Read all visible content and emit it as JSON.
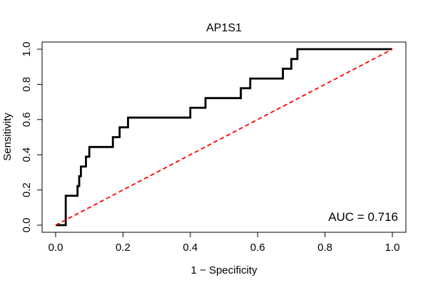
{
  "chart_data": {
    "type": "line",
    "title": "AP1S1",
    "xlabel": "1 − Specificity",
    "ylabel": "Sensitivity",
    "xlim": [
      0,
      1
    ],
    "ylim": [
      0,
      1
    ],
    "x_ticks": [
      "0.0",
      "0.2",
      "0.4",
      "0.6",
      "0.8",
      "1.0"
    ],
    "y_ticks": [
      "0.0",
      "0.2",
      "0.4",
      "0.6",
      "0.8",
      "1.0"
    ],
    "annotation": "AUC = 0.716",
    "grid": false,
    "series": [
      {
        "style": "solid",
        "color": "#000000",
        "points": [
          [
            0.0,
            0.0
          ],
          [
            0.03,
            0.0
          ],
          [
            0.03,
            0.167
          ],
          [
            0.065,
            0.167
          ],
          [
            0.065,
            0.222
          ],
          [
            0.07,
            0.222
          ],
          [
            0.07,
            0.278
          ],
          [
            0.075,
            0.278
          ],
          [
            0.075,
            0.333
          ],
          [
            0.09,
            0.333
          ],
          [
            0.09,
            0.389
          ],
          [
            0.1,
            0.389
          ],
          [
            0.1,
            0.444
          ],
          [
            0.17,
            0.444
          ],
          [
            0.17,
            0.5
          ],
          [
            0.19,
            0.5
          ],
          [
            0.19,
            0.556
          ],
          [
            0.215,
            0.556
          ],
          [
            0.215,
            0.611
          ],
          [
            0.4,
            0.611
          ],
          [
            0.4,
            0.667
          ],
          [
            0.445,
            0.667
          ],
          [
            0.445,
            0.722
          ],
          [
            0.55,
            0.722
          ],
          [
            0.55,
            0.778
          ],
          [
            0.578,
            0.778
          ],
          [
            0.578,
            0.833
          ],
          [
            0.675,
            0.833
          ],
          [
            0.675,
            0.889
          ],
          [
            0.7,
            0.889
          ],
          [
            0.7,
            0.944
          ],
          [
            0.718,
            0.944
          ],
          [
            0.718,
            1.0
          ],
          [
            1.0,
            1.0
          ]
        ]
      },
      {
        "style": "dashed",
        "color": "#ff0000",
        "points": [
          [
            0,
            0
          ],
          [
            1,
            1
          ]
        ]
      }
    ]
  }
}
